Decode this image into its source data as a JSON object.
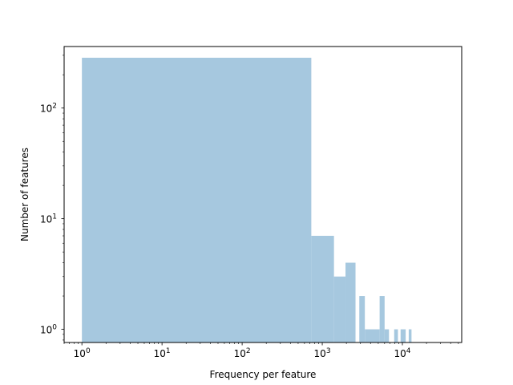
{
  "chart_data": {
    "type": "bar",
    "title": "",
    "xlabel": "Frequency per feature",
    "ylabel": "Number of features",
    "xscale": "log",
    "yscale": "log",
    "xlim": [
      0.6,
      55000
    ],
    "ylim": [
      0.76,
      360
    ],
    "bar_color": "#a6c8df",
    "grid": false,
    "xticks": [
      {
        "value": 1,
        "base": "10",
        "exp": "0"
      },
      {
        "value": 10,
        "base": "10",
        "exp": "1"
      },
      {
        "value": 100,
        "base": "10",
        "exp": "2"
      },
      {
        "value": 1000,
        "base": "10",
        "exp": "3"
      },
      {
        "value": 10000,
        "base": "10",
        "exp": "4"
      }
    ],
    "yticks": [
      {
        "value": 1,
        "base": "10",
        "exp": "0"
      },
      {
        "value": 10,
        "base": "10",
        "exp": "1"
      },
      {
        "value": 100,
        "base": "10",
        "exp": "2"
      }
    ],
    "bins": [
      {
        "x0": 1,
        "x1": 730,
        "count": 285
      },
      {
        "x0": 730,
        "x1": 1400,
        "count": 7
      },
      {
        "x0": 1400,
        "x1": 1950,
        "count": 3
      },
      {
        "x0": 1950,
        "x1": 2600,
        "count": 4
      },
      {
        "x0": 2900,
        "x1": 3400,
        "count": 2
      },
      {
        "x0": 3400,
        "x1": 5200,
        "count": 1
      },
      {
        "x0": 5200,
        "x1": 6000,
        "count": 2
      },
      {
        "x0": 6000,
        "x1": 6800,
        "count": 1
      },
      {
        "x0": 7900,
        "x1": 8800,
        "count": 1
      },
      {
        "x0": 9500,
        "x1": 11000,
        "count": 1
      },
      {
        "x0": 12000,
        "x1": 13000,
        "count": 1
      }
    ]
  }
}
